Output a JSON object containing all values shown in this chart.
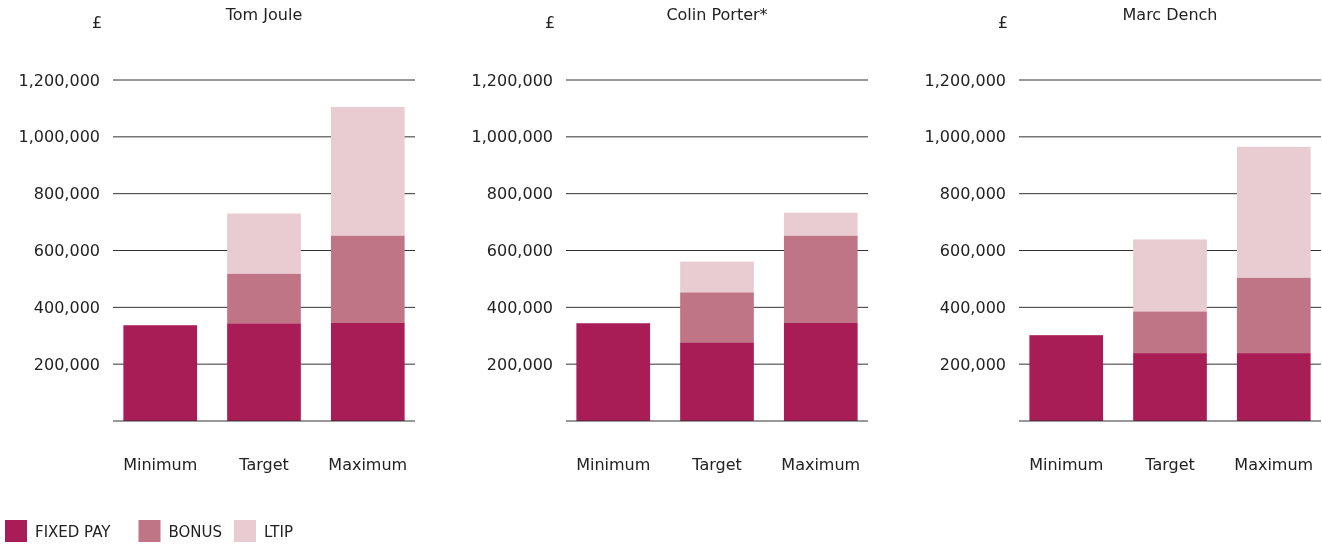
{
  "chart_data": [
    {
      "type": "bar",
      "title": "Tom Joule",
      "ylabel": "£",
      "categories": [
        "Minimum",
        "Target",
        "Maximum"
      ],
      "stacked": true,
      "ylim": [
        0,
        1200000
      ],
      "yticks": [
        {
          "value": 200000,
          "label": "200,000"
        },
        {
          "value": 400000,
          "label": "400,000"
        },
        {
          "value": 600000,
          "label": "600,000"
        },
        {
          "value": 800000,
          "label": "800,000"
        },
        {
          "value": 1000000,
          "label": "1,000,000"
        },
        {
          "value": 1200000,
          "label": "1,200,000"
        }
      ],
      "grid": "y",
      "legend": "bottom left",
      "series": [
        {
          "name": "FIXED PAY",
          "color": "#a91d57",
          "values": [
            337000,
            344000,
            347000
          ]
        },
        {
          "name": "BONUS",
          "color": "#c07586",
          "values": [
            0,
            175000,
            306000
          ]
        },
        {
          "name": "LTIP",
          "color": "#e8ccd2",
          "values": [
            0,
            211000,
            452000
          ]
        }
      ]
    },
    {
      "type": "bar",
      "title": "Colin Porter*",
      "ylabel": "£",
      "categories": [
        "Minimum",
        "Target",
        "Maximum"
      ],
      "stacked": true,
      "ylim": [
        0,
        1200000
      ],
      "yticks": [
        {
          "value": 200000,
          "label": "200,000"
        },
        {
          "value": 400000,
          "label": "400,000"
        },
        {
          "value": 600000,
          "label": "600,000"
        },
        {
          "value": 800000,
          "label": "800,000"
        },
        {
          "value": 1000000,
          "label": "1,000,000"
        },
        {
          "value": 1200000,
          "label": "1,200,000"
        }
      ],
      "grid": "y",
      "series": [
        {
          "color": "#a91d57",
          "values": [
            344000,
            277000,
            347000
          ]
        },
        {
          "color": "#c07586",
          "values": [
            0,
            176000,
            306000
          ]
        },
        {
          "color": "#e8ccd2",
          "values": [
            0,
            108000,
            80000
          ]
        }
      ]
    },
    {
      "type": "bar",
      "title": "Marc Dench",
      "ylabel": "£",
      "categories": [
        "Minimum",
        "Target",
        "Maximum"
      ],
      "stacked": true,
      "ylim": [
        0,
        1200000
      ],
      "yticks": [
        {
          "value": 200000,
          "label": "200,000"
        },
        {
          "value": 400000,
          "label": "400,000"
        },
        {
          "value": 600000,
          "label": "600,000"
        },
        {
          "value": 800000,
          "label": "800,000"
        },
        {
          "value": 1000000,
          "label": "1,000,000"
        },
        {
          "value": 1200000,
          "label": "1,200,000"
        }
      ],
      "grid": "y",
      "series": [
        {
          "color": "#a91d57",
          "values": [
            302000,
            239000,
            239000
          ]
        },
        {
          "color": "#c07586",
          "values": [
            0,
            147000,
            266000
          ]
        },
        {
          "color": "#e8ccd2",
          "values": [
            0,
            253000,
            460000
          ]
        }
      ]
    }
  ]
}
